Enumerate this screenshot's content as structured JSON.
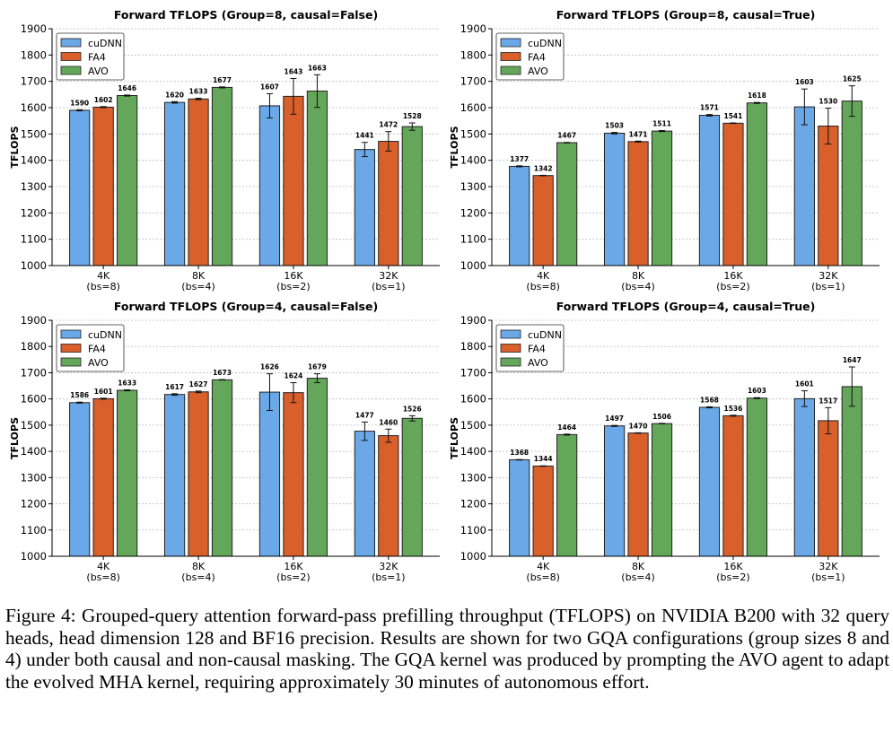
{
  "colors": {
    "cuDNN": "#6aa8e8",
    "FA4": "#d95f2b",
    "AVO": "#65a75a"
  },
  "chart_data": [
    {
      "type": "bar",
      "title": "Forward TFLOPS (Group=8, causal=False)",
      "ylabel": "TFLOPS",
      "ylim": [
        1000,
        1900
      ],
      "yticks": [
        "1000",
        "1100",
        "1200",
        "1300",
        "1400",
        "1500",
        "1600",
        "1700",
        "1800",
        "1900"
      ],
      "categories": [
        "4K",
        "8K",
        "16K",
        "32K"
      ],
      "category_sublabels": [
        "(bs=8)",
        "(bs=4)",
        "(bs=2)",
        "(bs=1)"
      ],
      "grid": true,
      "legend": "top-left",
      "series": [
        {
          "name": "cuDNN",
          "values": [
            1590,
            1620,
            1607,
            1441
          ],
          "errors": [
            2,
            3,
            46,
            27
          ]
        },
        {
          "name": "FA4",
          "values": [
            1602,
            1633,
            1643,
            1472
          ],
          "errors": [
            2,
            3,
            68,
            37
          ]
        },
        {
          "name": "AVO",
          "values": [
            1646,
            1677,
            1663,
            1528
          ],
          "errors": [
            2,
            2,
            62,
            14
          ]
        }
      ]
    },
    {
      "type": "bar",
      "title": "Forward TFLOPS (Group=8, causal=True)",
      "ylabel": "TFLOPS",
      "ylim": [
        1000,
        1900
      ],
      "yticks": [
        "1000",
        "1100",
        "1200",
        "1300",
        "1400",
        "1500",
        "1600",
        "1700",
        "1800",
        "1900"
      ],
      "categories": [
        "4K",
        "8K",
        "16K",
        "32K"
      ],
      "category_sublabels": [
        "(bs=8)",
        "(bs=4)",
        "(bs=2)",
        "(bs=1)"
      ],
      "grid": true,
      "legend": "top-left",
      "series": [
        {
          "name": "cuDNN",
          "values": [
            1377,
            1503,
            1571,
            1603
          ],
          "errors": [
            2,
            3,
            3,
            68
          ]
        },
        {
          "name": "FA4",
          "values": [
            1342,
            1471,
            1541,
            1530
          ],
          "errors": [
            1,
            2,
            1,
            68
          ]
        },
        {
          "name": "AVO",
          "values": [
            1467,
            1511,
            1618,
            1625
          ],
          "errors": [
            1,
            2,
            2,
            58
          ]
        }
      ]
    },
    {
      "type": "bar",
      "title": "Forward TFLOPS (Group=4, causal=False)",
      "ylabel": "TFLOPS",
      "ylim": [
        1000,
        1900
      ],
      "yticks": [
        "1000",
        "1100",
        "1200",
        "1300",
        "1400",
        "1500",
        "1600",
        "1700",
        "1800",
        "1900"
      ],
      "categories": [
        "4K",
        "8K",
        "16K",
        "32K"
      ],
      "category_sublabels": [
        "(bs=8)",
        "(bs=4)",
        "(bs=2)",
        "(bs=1)"
      ],
      "grid": true,
      "legend": "top-left",
      "series": [
        {
          "name": "cuDNN",
          "values": [
            1586,
            1617,
            1626,
            1477
          ],
          "errors": [
            2,
            3,
            70,
            35
          ]
        },
        {
          "name": "FA4",
          "values": [
            1601,
            1627,
            1624,
            1460
          ],
          "errors": [
            2,
            3,
            38,
            25
          ]
        },
        {
          "name": "AVO",
          "values": [
            1633,
            1673,
            1679,
            1526
          ],
          "errors": [
            2,
            1,
            17,
            10
          ]
        }
      ]
    },
    {
      "type": "bar",
      "title": "Forward TFLOPS (Group=4, causal=True)",
      "ylabel": "TFLOPS",
      "ylim": [
        1000,
        1900
      ],
      "yticks": [
        "1000",
        "1100",
        "1200",
        "1300",
        "1400",
        "1500",
        "1600",
        "1700",
        "1800",
        "1900"
      ],
      "categories": [
        "4K",
        "8K",
        "16K",
        "32K"
      ],
      "category_sublabels": [
        "(bs=8)",
        "(bs=4)",
        "(bs=2)",
        "(bs=1)"
      ],
      "grid": true,
      "legend": "top-left",
      "series": [
        {
          "name": "cuDNN",
          "values": [
            1368,
            1497,
            1568,
            1601
          ],
          "errors": [
            1,
            2,
            2,
            30
          ]
        },
        {
          "name": "FA4",
          "values": [
            1344,
            1470,
            1536,
            1517
          ],
          "errors": [
            1,
            1,
            2,
            50
          ]
        },
        {
          "name": "AVO",
          "values": [
            1464,
            1506,
            1603,
            1647
          ],
          "errors": [
            2,
            1,
            2,
            75
          ]
        }
      ]
    }
  ],
  "caption": "Figure 4: Grouped-query attention forward-pass prefilling throughput (TFLOPS) on NVIDIA B200 with 32 query heads, head dimension 128 and BF16 precision. Results are shown for two GQA configurations (group sizes 8 and 4) under both causal and non-causal masking. The GQA kernel was produced by prompting the AVO agent to adapt the evolved MHA kernel, requiring approximately 30 minutes of autonomous effort."
}
